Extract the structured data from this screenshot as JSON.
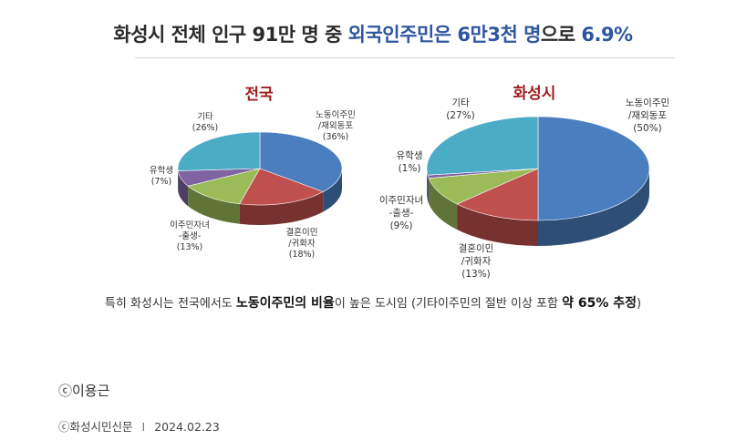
{
  "headline": {
    "part1": "화성시 전체 인구 91만 명 중 ",
    "part2": "외국인주민은 6만3천 명",
    "part3": "으로 ",
    "part4": "6.9%"
  },
  "caption": {
    "t1": "특히 화성시는 전국에서도 ",
    "b1": "노동이주민의 비율",
    "t2": "이 높은 도시임 (기타이주민의 절반 이상 포함 ",
    "b2": "약 65% 추정",
    "t3": ")"
  },
  "credit": "ⓒ이용근",
  "source": {
    "publisher": "ⓒ화성시민신문",
    "separator": "I",
    "date": "2024.02.23"
  },
  "colors": {
    "labor": "#4a7ebf",
    "marriage": "#c0504d",
    "children": "#9bbb59",
    "student": "#8064a2",
    "other": "#4bacc6"
  },
  "chart_data": [
    {
      "type": "pie",
      "title": "전국",
      "slices": [
        {
          "key": "labor",
          "label_lines": [
            "노동이주민",
            "/재외동포",
            "(36%)"
          ],
          "value": 36
        },
        {
          "key": "marriage",
          "label_lines": [
            "결혼이민",
            "/귀화자",
            "(18%)"
          ],
          "value": 18
        },
        {
          "key": "children",
          "label_lines": [
            "이주민자녀",
            "-출생-",
            "(13%)"
          ],
          "value": 13
        },
        {
          "key": "student",
          "label_lines": [
            "유학생",
            "(7%)"
          ],
          "value": 7
        },
        {
          "key": "other",
          "label_lines": [
            "기타",
            "(26%)"
          ],
          "value": 26
        }
      ]
    },
    {
      "type": "pie",
      "title": "화성시",
      "slices": [
        {
          "key": "labor",
          "label_lines": [
            "노동이주민",
            "/재외동포",
            "(50%)"
          ],
          "value": 50
        },
        {
          "key": "marriage",
          "label_lines": [
            "결혼이민",
            "/귀화자",
            "(13%)"
          ],
          "value": 13
        },
        {
          "key": "children",
          "label_lines": [
            "이주민자녀",
            "-출생-",
            "(9%)"
          ],
          "value": 9
        },
        {
          "key": "student",
          "label_lines": [
            "유학생",
            "(1%)"
          ],
          "value": 1
        },
        {
          "key": "other",
          "label_lines": [
            "기타",
            "(27%)"
          ],
          "value": 27
        }
      ]
    }
  ]
}
